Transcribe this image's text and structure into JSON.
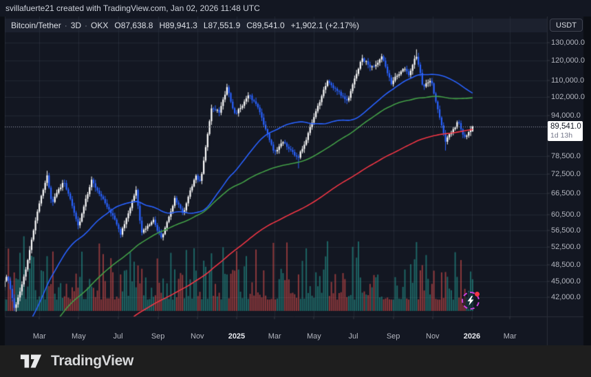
{
  "attribution": {
    "text": "svillafuerte21 created with TradingView.com, Jan 02, 2026 11:48 UTC"
  },
  "header": {
    "symbol": "Bitcoin/Tether",
    "separator": "·",
    "interval": "3D",
    "exchange": "OKX",
    "ohlc": {
      "o_label": "O",
      "o": "87,638.8",
      "h_label": "H",
      "h": "89,941.3",
      "l_label": "L",
      "l": "87,551.9",
      "c_label": "C",
      "c": "89,541.0"
    },
    "change": "+1,902.1 (+2.17%)"
  },
  "price_scale": {
    "currency": "USDT",
    "last_price": "89,541.0",
    "countdown": "1d 13h",
    "ticks": [
      {
        "label": "130,000.0",
        "value": 130
      },
      {
        "label": "120,000.0",
        "value": 120
      },
      {
        "label": "110,000.0",
        "value": 110
      },
      {
        "label": "102,000.0",
        "value": 102
      },
      {
        "label": "94,000.0",
        "value": 94
      },
      {
        "label": "78,500.0",
        "value": 78.5
      },
      {
        "label": "72,500.0",
        "value": 72.5
      },
      {
        "label": "66,500.0",
        "value": 66.5
      },
      {
        "label": "60,500.0",
        "value": 60.5
      },
      {
        "label": "56,500.0",
        "value": 56.5
      },
      {
        "label": "52,500.0",
        "value": 52.5
      },
      {
        "label": "48,500.0",
        "value": 48.5
      },
      {
        "label": "45,000.0",
        "value": 45
      },
      {
        "label": "42,000.0",
        "value": 42
      }
    ]
  },
  "time_axis": {
    "ticks": [
      {
        "label": "Mar",
        "day": 60,
        "bold": false
      },
      {
        "label": "May",
        "day": 121,
        "bold": false
      },
      {
        "label": "Jul",
        "day": 182,
        "bold": false
      },
      {
        "label": "Sep",
        "day": 244,
        "bold": false
      },
      {
        "label": "Nov",
        "day": 305,
        "bold": false
      },
      {
        "label": "2025",
        "day": 366,
        "bold": true
      },
      {
        "label": "Mar",
        "day": 425,
        "bold": false
      },
      {
        "label": "May",
        "day": 486,
        "bold": false
      },
      {
        "label": "Jul",
        "day": 547,
        "bold": false
      },
      {
        "label": "Sep",
        "day": 609,
        "bold": false
      },
      {
        "label": "Nov",
        "day": 670,
        "bold": false
      },
      {
        "label": "2026",
        "day": 731,
        "bold": true
      },
      {
        "label": "Mar",
        "day": 790,
        "bold": false
      }
    ]
  },
  "footer": {
    "brand": "TradingView"
  },
  "colors": {
    "bg_outer": "#0b0e14",
    "bg_panel": "#131722",
    "grid": "rgba(148,158,184,0.12)",
    "separator": "#2a2e39",
    "tick_mark": "#363a45",
    "candle_up": "#ffffff",
    "candle_down": "#2962ff",
    "vol_up": "rgba(38,166,154,0.55)",
    "vol_down": "rgba(239,83,80,0.55)",
    "ma_fast": "#2962ff",
    "ma_mid": "#43a047",
    "ma_slow": "#f23645",
    "last_price_line": "#a8acb8",
    "badge_bg": "#ffffff",
    "badge_text": "#131722",
    "boost_ring": "#c93fdd",
    "boost_dot": "#f23645"
  },
  "chart_data": {
    "type": "candlestick",
    "title": "Bitcoin/Tether 3D on OKX",
    "interval_days_per_bar": 3,
    "price_scale_type": "log",
    "unit": "thousand USDT",
    "x_range_visible": [
      "Jan 2024",
      "Jan 2026 (margin to Mar 2026)"
    ],
    "y_axis_ticks_thousand": [
      130,
      120,
      110,
      102,
      94,
      78.5,
      72.5,
      66.5,
      60.5,
      56.5,
      52.5,
      48.5,
      45,
      42
    ],
    "last_candle": {
      "open": 87.6388,
      "high": 89.9413,
      "low": 87.5519,
      "close": 89.541
    },
    "change_abs": 1902.1,
    "change_pct": 2.17,
    "moving_averages": {
      "fast_bars": 50,
      "mid_bars": 100,
      "slow_bars": 200
    },
    "keyframes_history_day_priceK": [
      [
        -612,
        30.8
      ],
      [
        -596,
        30.2
      ],
      [
        -562,
        19.0
      ],
      [
        -520,
        23.8
      ],
      [
        -460,
        19.6
      ],
      [
        -418,
        16.2
      ],
      [
        -365,
        16.6
      ],
      [
        -337,
        23.6
      ],
      [
        -297,
        20.4
      ],
      [
        -262,
        30.2
      ],
      [
        -200,
        25.7
      ],
      [
        -172,
        31.1
      ],
      [
        -112,
        25.3
      ],
      [
        -77,
        27.4
      ],
      [
        -40,
        37.5
      ],
      [
        -24,
        43.6
      ],
      [
        0,
        42.6
      ]
    ],
    "keyframes_visible_day_priceK": [
      [
        3,
        44.2
      ],
      [
        10,
        46.6
      ],
      [
        22,
        39.8
      ],
      [
        40,
        48.2
      ],
      [
        58,
        62.4
      ],
      [
        72,
        72.5
      ],
      [
        79,
        63.5
      ],
      [
        98,
        70.2
      ],
      [
        121,
        57.8
      ],
      [
        141,
        70.5
      ],
      [
        160,
        64.8
      ],
      [
        176,
        60.3
      ],
      [
        186,
        55.3
      ],
      [
        210,
        67.5
      ],
      [
        218,
        55.8
      ],
      [
        237,
        59.2
      ],
      [
        250,
        54.5
      ],
      [
        270,
        65.3
      ],
      [
        283,
        61.0
      ],
      [
        302,
        72.0
      ],
      [
        310,
        69.8
      ],
      [
        327,
        97.5
      ],
      [
        339,
        95.5
      ],
      [
        351,
        106.0
      ],
      [
        364,
        94.0
      ],
      [
        385,
        104.0
      ],
      [
        400,
        96.8
      ],
      [
        424,
        80.0
      ],
      [
        438,
        84.0
      ],
      [
        462,
        78.0
      ],
      [
        475,
        85.5
      ],
      [
        507,
        110.0
      ],
      [
        538,
        100.0
      ],
      [
        560,
        121.5
      ],
      [
        577,
        116.5
      ],
      [
        591,
        123.0
      ],
      [
        606,
        109.0
      ],
      [
        626,
        117.0
      ],
      [
        634,
        112.0
      ],
      [
        644,
        124.5
      ],
      [
        655,
        106.5
      ],
      [
        668,
        110.0
      ],
      [
        690,
        83.0
      ],
      [
        700,
        88.0
      ],
      [
        710,
        92.0
      ],
      [
        718,
        85.0
      ],
      [
        726,
        87.5
      ],
      [
        732,
        89.541
      ]
    ],
    "extremes": [
      {
        "day": 72,
        "high": 73.6
      },
      {
        "day": 351,
        "high": 108.3
      },
      {
        "day": 462,
        "low": 74.4
      },
      {
        "day": 560,
        "high": 123.2
      },
      {
        "day": 645,
        "high": 126.2
      },
      {
        "day": 690,
        "low": 80.5
      }
    ],
    "volume_spikes_by_bar": {
      "0": 0.58,
      "11": 0.92,
      "20": 0.5,
      "40": 0.42,
      "61": 0.45,
      "72": 0.52,
      "83": 0.4,
      "104": 0.62,
      "116": 0.45,
      "125": 0.55,
      "135": 0.5,
      "153": 0.45,
      "216": 0.5,
      "229": 0.48,
      "235": 0.42
    }
  }
}
